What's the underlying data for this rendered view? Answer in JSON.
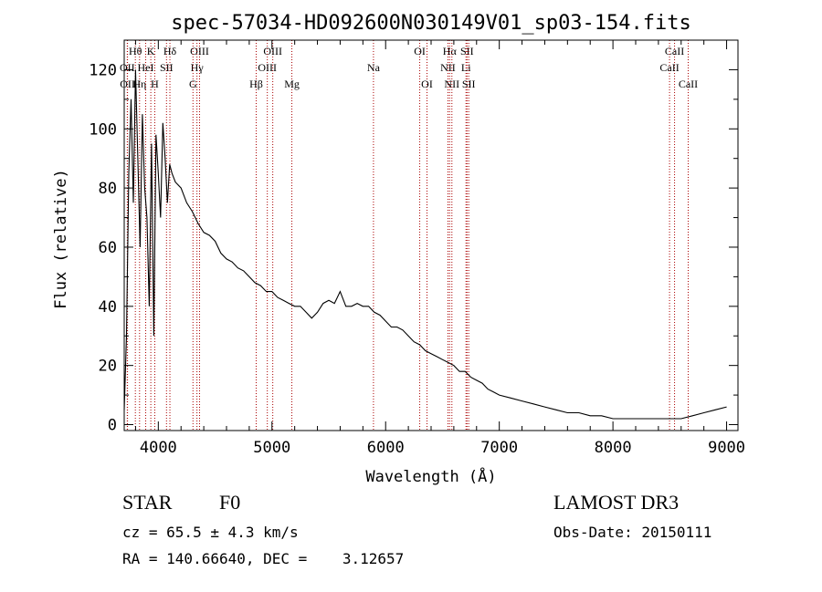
{
  "chart_data": {
    "type": "line",
    "title": "spec-57034-HD092600N030149V01_sp03-154.fits",
    "xlabel": "Wavelength (Å)",
    "ylabel": "Flux (relative)",
    "xlim": [
      3700,
      9100
    ],
    "ylim": [
      -2,
      130
    ],
    "xticks": [
      4000,
      5000,
      6000,
      7000,
      8000,
      9000
    ],
    "yticks": [
      0,
      20,
      40,
      60,
      80,
      100,
      120
    ],
    "series": [
      {
        "name": "flux",
        "x": [
          3700,
          3720,
          3740,
          3760,
          3780,
          3800,
          3820,
          3840,
          3860,
          3880,
          3900,
          3920,
          3940,
          3960,
          3980,
          4000,
          4020,
          4040,
          4060,
          4080,
          4100,
          4120,
          4150,
          4200,
          4250,
          4300,
          4350,
          4400,
          4450,
          4500,
          4550,
          4600,
          4650,
          4700,
          4750,
          4800,
          4850,
          4900,
          4950,
          5000,
          5050,
          5100,
          5150,
          5200,
          5250,
          5300,
          5350,
          5400,
          5450,
          5500,
          5550,
          5600,
          5650,
          5700,
          5750,
          5800,
          5850,
          5900,
          5950,
          6000,
          6050,
          6100,
          6150,
          6200,
          6250,
          6300,
          6350,
          6400,
          6450,
          6500,
          6550,
          6600,
          6650,
          6700,
          6750,
          6800,
          6850,
          6900,
          6950,
          7000,
          7100,
          7200,
          7300,
          7400,
          7500,
          7600,
          7700,
          7800,
          7900,
          8000,
          8100,
          8200,
          8300,
          8400,
          8500,
          8600,
          8700,
          8800,
          8900,
          9000
        ],
        "y": [
          5,
          30,
          85,
          110,
          75,
          120,
          90,
          60,
          105,
          80,
          70,
          40,
          95,
          30,
          98,
          85,
          70,
          102,
          90,
          75,
          88,
          85,
          82,
          80,
          75,
          72,
          68,
          65,
          64,
          62,
          58,
          56,
          55,
          53,
          52,
          50,
          48,
          47,
          45,
          45,
          43,
          42,
          41,
          40,
          40,
          38,
          36,
          38,
          41,
          42,
          41,
          45,
          40,
          40,
          41,
          40,
          40,
          38,
          37,
          35,
          33,
          33,
          32,
          30,
          28,
          27,
          25,
          24,
          23,
          22,
          21,
          20,
          18,
          18,
          16,
          15,
          14,
          12,
          11,
          10,
          9,
          8,
          7,
          6,
          5,
          4,
          4,
          3,
          3,
          2,
          2,
          2,
          2,
          2,
          2,
          2,
          3,
          4,
          5,
          6
        ]
      }
    ],
    "line_marks": [
      {
        "label": "Hθ",
        "x": 3798,
        "row": 0
      },
      {
        "label": "OII",
        "x": 3727,
        "row": 1
      },
      {
        "label": "OII",
        "x": 3729,
        "row": 2
      },
      {
        "label": "Hη",
        "x": 3835,
        "row": 2
      },
      {
        "label": "K",
        "x": 3934,
        "row": 0
      },
      {
        "label": "HeI",
        "x": 3889,
        "row": 1
      },
      {
        "label": "H",
        "x": 3969,
        "row": 2
      },
      {
        "label": "SII",
        "x": 4072,
        "row": 1
      },
      {
        "label": "Hδ",
        "x": 4102,
        "row": 0
      },
      {
        "label": "OIII",
        "x": 4363,
        "row": 0
      },
      {
        "label": "Hγ",
        "x": 4340,
        "row": 1
      },
      {
        "label": "G",
        "x": 4305,
        "row": 2
      },
      {
        "label": "Hβ",
        "x": 4861,
        "row": 2
      },
      {
        "label": "OIII",
        "x": 5007,
        "row": 0
      },
      {
        "label": "OIII",
        "x": 4959,
        "row": 1
      },
      {
        "label": "Mg",
        "x": 5175,
        "row": 2
      },
      {
        "label": "Na",
        "x": 5893,
        "row": 1
      },
      {
        "label": "OI",
        "x": 6300,
        "row": 0
      },
      {
        "label": "OI",
        "x": 6364,
        "row": 2
      },
      {
        "label": "Hα",
        "x": 6563,
        "row": 0
      },
      {
        "label": "NII",
        "x": 6548,
        "row": 1
      },
      {
        "label": "NII",
        "x": 6583,
        "row": 2
      },
      {
        "label": "SII",
        "x": 6716,
        "row": 0
      },
      {
        "label": "Li",
        "x": 6707,
        "row": 1
      },
      {
        "label": "SII",
        "x": 6731,
        "row": 2
      },
      {
        "label": "CaII",
        "x": 8542,
        "row": 0
      },
      {
        "label": "CaII",
        "x": 8498,
        "row": 1
      },
      {
        "label": "CaII",
        "x": 8662,
        "row": 2
      }
    ]
  },
  "info": {
    "class_label": "STAR",
    "subclass": "F0",
    "survey": "LAMOST DR3",
    "cz_line": "cz = 65.5 ± 4.3 km/s",
    "obs_date_line": "Obs-Date: 20150111",
    "coords_line": "RA = 140.66640, DEC =    3.12657"
  },
  "colors": {
    "axis": "#000000",
    "spectrum": "#000000",
    "line_marker": "#aa0000"
  }
}
